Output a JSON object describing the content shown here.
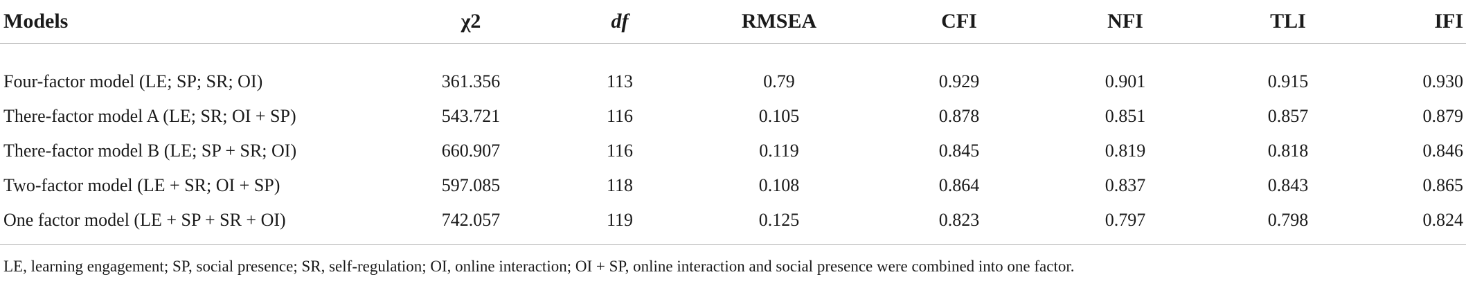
{
  "table": {
    "headers": [
      "Models",
      "χ2",
      "df",
      "RMSEA",
      "CFI",
      "NFI",
      "TLI",
      "IFI"
    ],
    "rows": [
      [
        "Four-factor model (LE; SP; SR; OI)",
        "361.356",
        "113",
        "0.79",
        "0.929",
        "0.901",
        "0.915",
        "0.930"
      ],
      [
        "There-factor model A (LE; SR; OI + SP)",
        "543.721",
        "116",
        "0.105",
        "0.878",
        "0.851",
        "0.857",
        "0.879"
      ],
      [
        "There-factor model B (LE; SP + SR; OI)",
        "660.907",
        "116",
        "0.119",
        "0.845",
        "0.819",
        "0.818",
        "0.846"
      ],
      [
        "Two-factor model (LE + SR; OI + SP)",
        "597.085",
        "118",
        "0.108",
        "0.864",
        "0.837",
        "0.843",
        "0.865"
      ],
      [
        "One factor model (LE + SP + SR + OI)",
        "742.057",
        "119",
        "0.125",
        "0.823",
        "0.797",
        "0.798",
        "0.824"
      ]
    ]
  },
  "footnote": "LE, learning engagement; SP, social presence; SR, self-regulation; OI, online interaction; OI + SP, online interaction and social presence were combined into one factor."
}
